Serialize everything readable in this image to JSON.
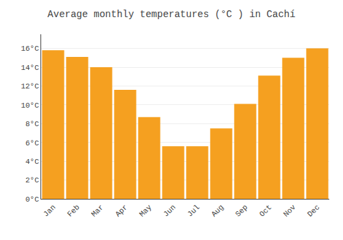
{
  "chart_data": {
    "type": "bar",
    "title": "Average monthly temperatures (°C ) in Cachí",
    "categories": [
      "Jan",
      "Feb",
      "Mar",
      "Apr",
      "May",
      "Jun",
      "Jul",
      "Aug",
      "Sep",
      "Oct",
      "Nov",
      "Dec"
    ],
    "values": [
      15.8,
      15.1,
      14.0,
      11.6,
      8.7,
      5.6,
      5.6,
      7.5,
      10.1,
      13.1,
      15.0,
      16.0
    ],
    "color": "#F5A020",
    "ylim": [
      0,
      17.5
    ],
    "yticks": [
      {
        "value": 0,
        "label": "0°C"
      },
      {
        "value": 2,
        "label": "2°C"
      },
      {
        "value": 4,
        "label": "4°C"
      },
      {
        "value": 6,
        "label": "6°C"
      },
      {
        "value": 8,
        "label": "8°C"
      },
      {
        "value": 10,
        "label": "10°C"
      },
      {
        "value": 12,
        "label": "12°C"
      },
      {
        "value": 14,
        "label": "14°C"
      },
      {
        "value": 16,
        "label": "16°C"
      }
    ],
    "grid": true
  }
}
